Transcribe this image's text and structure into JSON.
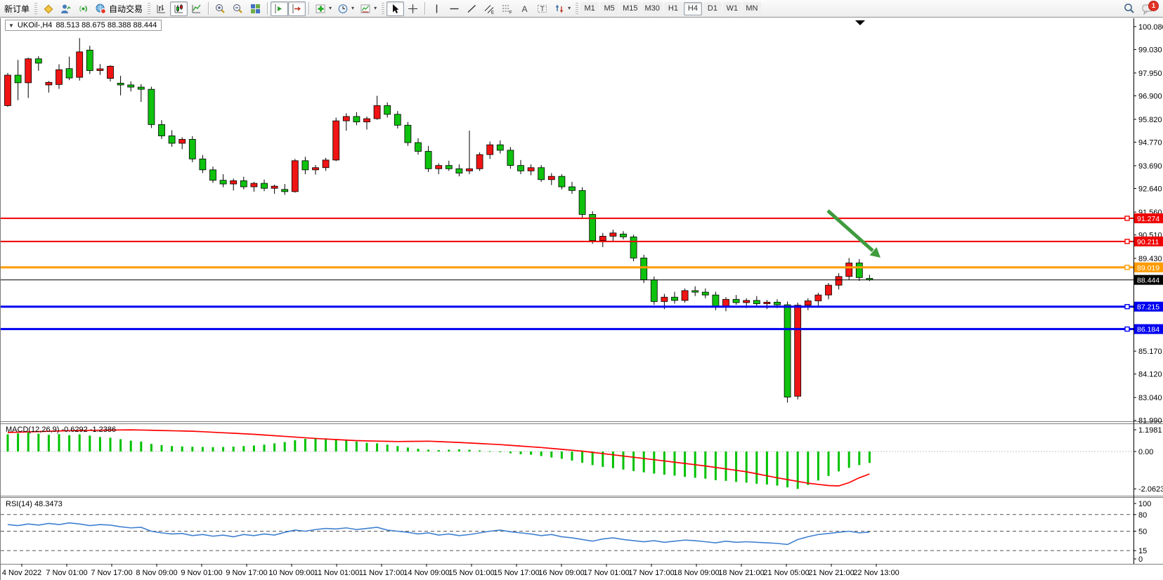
{
  "window": {
    "symbol_title": "UKOil-,H4",
    "ohlc_readout": "88.513 88.675 88.388 88.444"
  },
  "toolbar": {
    "new_order": "新订单",
    "auto_trading": "自动交易",
    "timeframes": [
      "M1",
      "M5",
      "M15",
      "M30",
      "H1",
      "H4",
      "D1",
      "W1",
      "MN"
    ],
    "active_timeframe": "H4",
    "chat_badge": "1"
  },
  "colors": {
    "candle_up": "#f01414",
    "candle_down": "#0ec20e",
    "candle_border": "#000000",
    "macd_histogram": "#00c200",
    "macd_signal": "#ff0000",
    "rsi_line": "#4080d0",
    "line_red": "#f00000",
    "line_orange": "#ff9c00",
    "line_blue": "#0000f0",
    "line_black": "#000000",
    "arrow_green": "#3e9b3e"
  },
  "price_scale": {
    "ticks": [
      "100.080",
      "99.030",
      "97.950",
      "96.900",
      "95.820",
      "94.770",
      "93.690",
      "92.640",
      "91.560",
      "90.510",
      "89.430",
      "85.170",
      "84.120",
      "83.040",
      "81.990"
    ],
    "badges": [
      {
        "value": "91.274",
        "color": "#f00000"
      },
      {
        "value": "90.211",
        "color": "#f00000"
      },
      {
        "value": "89.019",
        "color": "#ff9c00"
      },
      {
        "value": "88.444",
        "color": "#000000"
      },
      {
        "value": "87.215",
        "color": "#0000f0"
      },
      {
        "value": "86.184",
        "color": "#0000f0"
      }
    ]
  },
  "hlines": [
    {
      "price": 91.274,
      "color": "#f00000",
      "w": 2
    },
    {
      "price": 90.211,
      "color": "#f00000",
      "w": 2
    },
    {
      "price": 89.019,
      "color": "#ff9c00",
      "w": 3
    },
    {
      "price": 88.444,
      "color": "#000000",
      "w": 1
    },
    {
      "price": 87.215,
      "color": "#0000f0",
      "w": 3
    },
    {
      "price": 86.184,
      "color": "#0000f0",
      "w": 3
    }
  ],
  "macd": {
    "label": "MACD(12,26,9) -0.6292 -1.2386",
    "scale": [
      "1.1981",
      "0.00",
      "-2.0623"
    ]
  },
  "rsi": {
    "label": "RSI(14) 48.3473",
    "scale": [
      "100",
      "80",
      "50",
      "15",
      "0"
    ],
    "levels": [
      80,
      50,
      15
    ]
  },
  "time_axis": [
    "4 Nov 2022",
    "7 Nov 01:00",
    "7 Nov 17:00",
    "8 Nov 09:00",
    "9 Nov 01:00",
    "9 Nov 17:00",
    "10 Nov 09:00",
    "11 Nov 01:00",
    "11 Nov 17:00",
    "14 Nov 09:00",
    "15 Nov 01:00",
    "15 Nov 17:00",
    "16 Nov 09:00",
    "17 Nov 01:00",
    "17 Nov 17:00",
    "18 Nov 09:00",
    "18 Nov 21:00",
    "21 Nov 05:00",
    "21 Nov 21:00",
    "22 Nov 13:00"
  ],
  "annotation": {
    "type": "arrow",
    "direction": "down-right",
    "color": "#3e9b3e"
  },
  "chart_data": {
    "type": "candlestick",
    "symbol": "UKOil-",
    "timeframe": "H4",
    "price_range": [
      81.99,
      100.08
    ],
    "candles_ohlc": [
      [
        96.45,
        97.95,
        96.4,
        97.85
      ],
      [
        97.85,
        98.55,
        96.7,
        97.5
      ],
      [
        97.5,
        98.65,
        96.8,
        98.6
      ],
      [
        98.6,
        98.72,
        98.05,
        98.4
      ],
      [
        97.4,
        97.58,
        97.05,
        97.52
      ],
      [
        97.42,
        98.35,
        97.22,
        98.1
      ],
      [
        98.15,
        98.7,
        97.62,
        97.72
      ],
      [
        97.75,
        99.55,
        97.6,
        98.92
      ],
      [
        99,
        99.2,
        97.9,
        98.06
      ],
      [
        98.06,
        98.36,
        97.86,
        98.14
      ],
      [
        97.7,
        98.3,
        97.56,
        98.26
      ],
      [
        97.48,
        97.82,
        96.92,
        97.4
      ],
      [
        97.4,
        97.56,
        97.1,
        97.3
      ],
      [
        97.3,
        97.44,
        96.62,
        97.2
      ],
      [
        97.2,
        97.32,
        95.42,
        95.58
      ],
      [
        95.58,
        95.78,
        94.92,
        95.06
      ],
      [
        95.06,
        95.32,
        94.56,
        94.72
      ],
      [
        94.72,
        95,
        94.45,
        94.9
      ],
      [
        94.9,
        95.05,
        93.85,
        94
      ],
      [
        94,
        94.18,
        93.35,
        93.5
      ],
      [
        93.5,
        93.65,
        92.9,
        93.02
      ],
      [
        93.02,
        93.3,
        92.7,
        92.85
      ],
      [
        92.85,
        93.1,
        92.55,
        93
      ],
      [
        93,
        93.18,
        92.6,
        92.72
      ],
      [
        92.72,
        92.95,
        92.5,
        92.88
      ],
      [
        92.88,
        93.05,
        92.52,
        92.65
      ],
      [
        92.65,
        92.82,
        92.4,
        92.75
      ],
      [
        92.6,
        92.85,
        92.35,
        92.5
      ],
      [
        92.5,
        94,
        92.45,
        93.92
      ],
      [
        93.92,
        94.1,
        93.3,
        93.5
      ],
      [
        93.5,
        93.72,
        93.28,
        93.6
      ],
      [
        93.6,
        94.05,
        93.45,
        93.95
      ],
      [
        93.95,
        95.9,
        93.9,
        95.75
      ],
      [
        95.75,
        96.1,
        95.3,
        95.95
      ],
      [
        95.95,
        96.15,
        95.55,
        95.7
      ],
      [
        95.7,
        95.95,
        95.35,
        95.85
      ],
      [
        95.85,
        96.9,
        95.8,
        96.45
      ],
      [
        96.45,
        96.6,
        95.9,
        96.05
      ],
      [
        96.05,
        96.2,
        95.4,
        95.55
      ],
      [
        95.55,
        95.7,
        94.6,
        94.75
      ],
      [
        94.75,
        94.95,
        94.2,
        94.35
      ],
      [
        94.35,
        94.6,
        93.4,
        93.55
      ],
      [
        93.55,
        93.8,
        93.3,
        93.7
      ],
      [
        93.7,
        93.92,
        93.45,
        93.55
      ],
      [
        93.55,
        93.75,
        93.2,
        93.35
      ],
      [
        93.45,
        95.3,
        93.3,
        93.55
      ],
      [
        93.55,
        94.3,
        93.45,
        94.2
      ],
      [
        94.2,
        94.8,
        94,
        94.65
      ],
      [
        94.65,
        94.85,
        94.25,
        94.4
      ],
      [
        94.4,
        94.55,
        93.55,
        93.7
      ],
      [
        93.7,
        93.95,
        93.3,
        93.45
      ],
      [
        93.45,
        93.75,
        93.25,
        93.6
      ],
      [
        93.6,
        93.72,
        92.95,
        93.05
      ],
      [
        93.05,
        93.35,
        92.8,
        93.2
      ],
      [
        93.2,
        93.3,
        92.6,
        92.72
      ],
      [
        92.72,
        92.95,
        92.4,
        92.55
      ],
      [
        92.55,
        92.7,
        91.3,
        91.45
      ],
      [
        91.45,
        91.6,
        90.1,
        90.25
      ],
      [
        90.25,
        90.6,
        89.95,
        90.45
      ],
      [
        90.45,
        90.75,
        90.2,
        90.6
      ],
      [
        90.55,
        90.68,
        90.3,
        90.42
      ],
      [
        90.42,
        90.52,
        89.3,
        89.45
      ],
      [
        89.45,
        89.6,
        88.3,
        88.45
      ],
      [
        88.45,
        88.6,
        87.3,
        87.45
      ],
      [
        87.45,
        87.8,
        87.1,
        87.65
      ],
      [
        87.65,
        87.9,
        87.35,
        87.5
      ],
      [
        87.5,
        88.05,
        87.4,
        87.95
      ],
      [
        87.95,
        88.15,
        87.7,
        87.88
      ],
      [
        87.88,
        88.05,
        87.6,
        87.75
      ],
      [
        87.75,
        87.9,
        87.05,
        87.2
      ],
      [
        87.2,
        87.65,
        87,
        87.55
      ],
      [
        87.55,
        87.75,
        87.3,
        87.4
      ],
      [
        87.4,
        87.6,
        87.15,
        87.5
      ],
      [
        87.5,
        87.7,
        87.25,
        87.35
      ],
      [
        87.35,
        87.52,
        87.1,
        87.42
      ],
      [
        87.42,
        87.55,
        87.15,
        87.3
      ],
      [
        87.3,
        87.45,
        82.8,
        83.06
      ],
      [
        83.1,
        87.4,
        82.95,
        87.28
      ],
      [
        87.28,
        87.6,
        87.05,
        87.48
      ],
      [
        87.48,
        87.85,
        87.25,
        87.75
      ],
      [
        87.75,
        88.3,
        87.55,
        88.2
      ],
      [
        88.2,
        88.75,
        88,
        88.6
      ],
      [
        88.6,
        89.45,
        88.45,
        89.22
      ],
      [
        89.22,
        89.4,
        88.4,
        88.55
      ],
      [
        88.513,
        88.675,
        88.388,
        88.444
      ]
    ],
    "macd_histogram": [
      0.95,
      1,
      1.05,
      0.98,
      0.92,
      0.96,
      0.9,
      0.95,
      0.88,
      0.8,
      0.76,
      0.68,
      0.6,
      0.55,
      0.42,
      0.35,
      0.3,
      0.28,
      0.26,
      0.25,
      0.24,
      0.25,
      0.27,
      0.3,
      0.33,
      0.38,
      0.45,
      0.52,
      0.62,
      0.7,
      0.75,
      0.72,
      0.68,
      0.62,
      0.55,
      0.48,
      0.45,
      0.38,
      0.3,
      0.22,
      0.15,
      0.1,
      0.08,
      0.1,
      0.12,
      0.1,
      0.06,
      0.02,
      -0.04,
      -0.1,
      -0.15,
      -0.18,
      -0.25,
      -0.33,
      -0.4,
      -0.5,
      -0.62,
      -0.75,
      -0.85,
      -0.92,
      -1,
      -1.08,
      -1.15,
      -1.22,
      -1.28,
      -1.33,
      -1.4,
      -1.45,
      -1.5,
      -1.58,
      -1.62,
      -1.68,
      -1.72,
      -1.78,
      -1.82,
      -1.88,
      -1.98,
      -2.0623,
      -1.85,
      -1.6,
      -1.35,
      -1.1,
      -0.9,
      -0.75,
      -0.6292
    ],
    "macd_signal_points": [
      [
        0,
        1.05
      ],
      [
        6,
        1.15
      ],
      [
        12,
        1.198
      ],
      [
        18,
        1.12
      ],
      [
        24,
        0.95
      ],
      [
        30,
        0.72
      ],
      [
        34,
        0.6
      ],
      [
        38,
        0.55
      ],
      [
        41,
        0.57
      ],
      [
        44,
        0.5
      ],
      [
        48,
        0.38
      ],
      [
        52,
        0.22
      ],
      [
        56,
        0.02
      ],
      [
        60,
        -0.25
      ],
      [
        64,
        -0.52
      ],
      [
        68,
        -0.8
      ],
      [
        72,
        -1.12
      ],
      [
        75,
        -1.45
      ],
      [
        78,
        -1.75
      ],
      [
        80,
        -1.88
      ],
      [
        81,
        -1.9
      ],
      [
        82,
        -1.72
      ],
      [
        83,
        -1.45
      ],
      [
        84,
        -1.24
      ]
    ],
    "rsi_values": [
      62,
      60,
      63,
      61,
      64,
      62,
      65,
      63,
      60,
      62,
      61,
      58,
      56,
      57,
      50,
      47,
      45,
      46,
      42,
      44,
      41,
      43,
      40,
      44,
      42,
      45,
      43,
      48,
      52,
      50,
      53,
      55,
      54,
      56,
      53,
      55,
      57,
      52,
      50,
      48,
      45,
      47,
      43,
      45,
      42,
      44,
      47,
      50,
      52,
      49,
      47,
      45,
      42,
      44,
      40,
      38,
      35,
      32,
      36,
      38,
      35,
      33,
      31,
      33,
      30,
      32,
      34,
      33,
      31,
      29,
      32,
      30,
      31,
      30,
      29,
      28,
      26,
      35,
      40,
      44,
      46,
      48,
      50,
      47,
      48.35
    ]
  }
}
